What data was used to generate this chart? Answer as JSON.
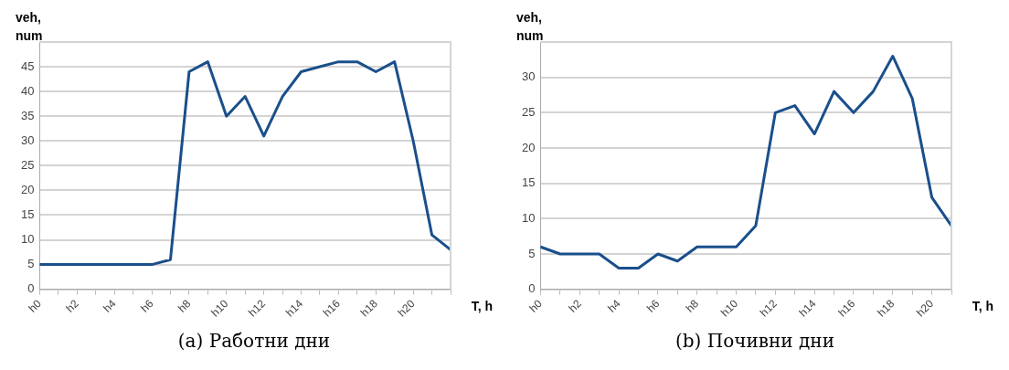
{
  "chart_data": [
    {
      "type": "line",
      "title": "(a) Работни дни",
      "xlabel": "T, h",
      "ylabel": "veh, num",
      "categories": [
        "h0",
        null,
        "h2",
        null,
        "h4",
        null,
        "h6",
        null,
        "h8",
        null,
        "h10",
        null,
        "h12",
        null,
        "h14",
        null,
        "h16",
        null,
        "h18",
        null,
        "h20",
        null,
        null
      ],
      "series": [
        {
          "color": "#1a4f8b",
          "values": [
            5,
            5,
            5,
            5,
            5,
            5,
            5,
            6,
            44,
            46,
            35,
            39,
            31,
            39,
            44,
            45,
            46,
            46,
            44,
            46,
            30,
            11,
            8
          ]
        }
      ],
      "ylim": [
        0,
        50
      ],
      "yticks": [
        0,
        5,
        10,
        15,
        20,
        25,
        30,
        35,
        40,
        45
      ],
      "grid": "y",
      "legend": false,
      "marker": "none",
      "line_style": "solid"
    },
    {
      "type": "line",
      "title": "(b) Почивни дни",
      "xlabel": "T, h",
      "ylabel": "veh, num",
      "categories": [
        "h0",
        null,
        "h2",
        null,
        "h4",
        null,
        "h6",
        null,
        "h8",
        null,
        "h10",
        null,
        "h12",
        null,
        "h14",
        null,
        "h16",
        null,
        "h18",
        null,
        "h20",
        null
      ],
      "series": [
        {
          "color": "#1a4f8b",
          "values": [
            6,
            5,
            5,
            5,
            3,
            3,
            5,
            4,
            6,
            6,
            6,
            9,
            25,
            26,
            22,
            28,
            25,
            28,
            33,
            27,
            13,
            9
          ]
        }
      ],
      "ylim": [
        0,
        35
      ],
      "yticks": [
        0,
        5,
        10,
        15,
        20,
        25,
        30
      ],
      "grid": "y",
      "legend": false,
      "marker": "none",
      "line_style": "solid"
    }
  ]
}
